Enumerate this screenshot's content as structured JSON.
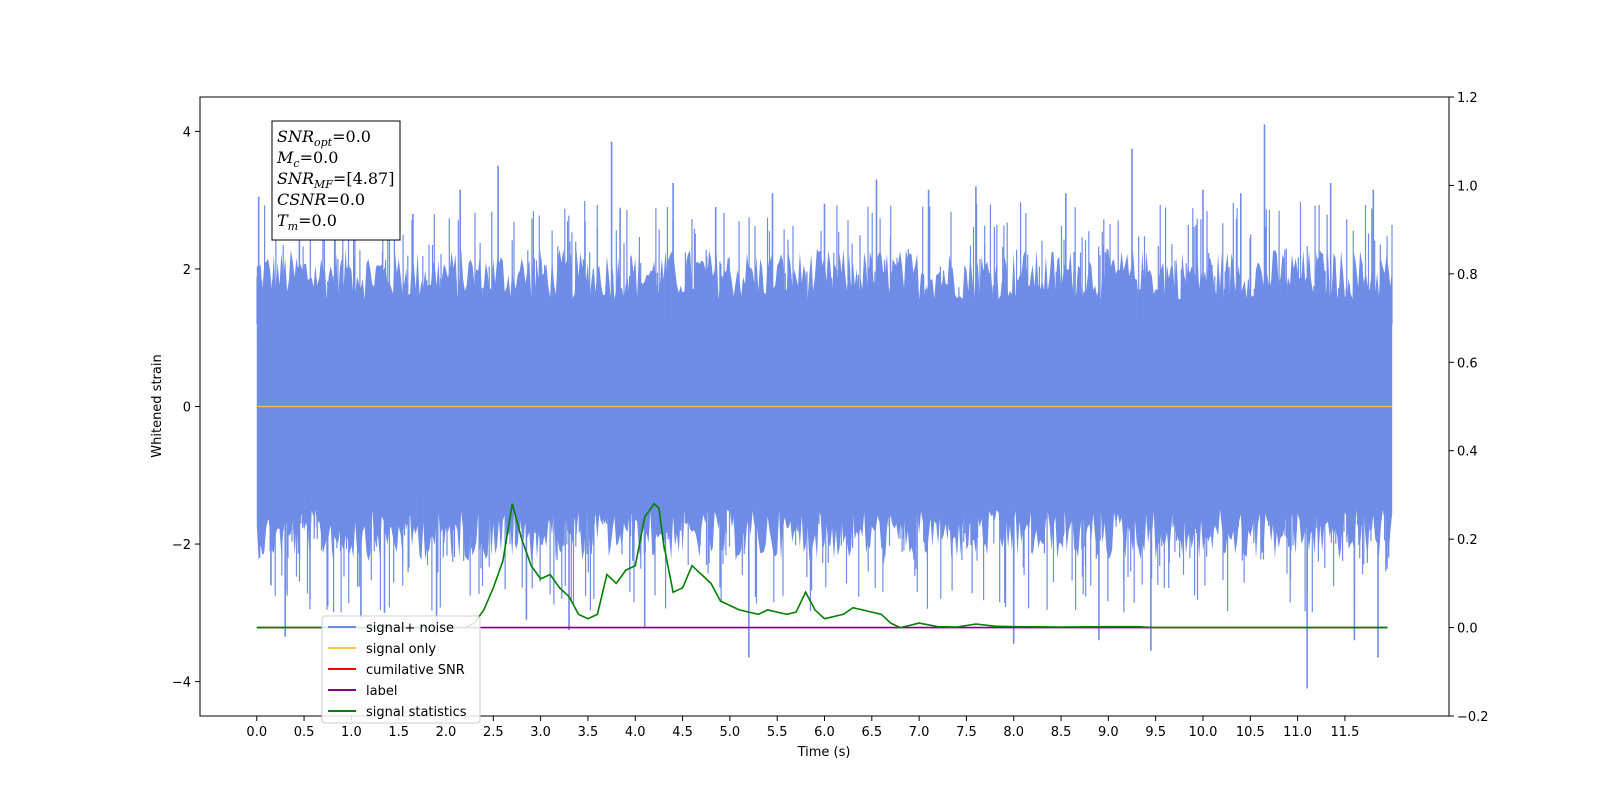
{
  "chart_data": {
    "type": "line",
    "xlabel": "Time (s)",
    "ylabel": "Whitened strain",
    "xlim": [
      -0.6,
      12.6
    ],
    "ylim": [
      -4.5,
      4.5
    ],
    "y2lim": [
      -0.2,
      1.2
    ],
    "x_ticks": [
      "0.0",
      "0.5",
      "1.0",
      "1.5",
      "2.0",
      "2.5",
      "3.0",
      "3.5",
      "4.0",
      "4.5",
      "5.0",
      "5.5",
      "6.0",
      "6.5",
      "7.0",
      "7.5",
      "8.0",
      "8.5",
      "9.0",
      "9.5",
      "10.0",
      "10.5",
      "11.0",
      "11.5"
    ],
    "y_ticks": [
      "4",
      "2",
      "0",
      "−2",
      "−4"
    ],
    "y2_ticks": [
      "1.2",
      "1.0",
      "0.8",
      "0.6",
      "0.4",
      "0.2",
      "0.0",
      "−0.2"
    ],
    "noise": {
      "x_range": [
        0.0,
        12.0
      ],
      "spikes": [
        {
          "x": 0.02,
          "y": 3.05
        },
        {
          "x": 0.03,
          "y": -2.2
        },
        {
          "x": 0.15,
          "y": -2.6
        },
        {
          "x": 0.3,
          "y": -3.35
        },
        {
          "x": 0.45,
          "y": 2.6
        },
        {
          "x": 0.75,
          "y": -2.9
        },
        {
          "x": 1.1,
          "y": -3.1
        },
        {
          "x": 1.35,
          "y": -3.0
        },
        {
          "x": 1.65,
          "y": 2.8
        },
        {
          "x": 1.9,
          "y": -3.3
        },
        {
          "x": 2.15,
          "y": 3.15
        },
        {
          "x": 2.55,
          "y": 3.5
        },
        {
          "x": 2.85,
          "y": -3.1
        },
        {
          "x": 3.3,
          "y": -3.25
        },
        {
          "x": 3.75,
          "y": 3.85
        },
        {
          "x": 4.1,
          "y": -3.2
        },
        {
          "x": 4.4,
          "y": 3.25
        },
        {
          "x": 4.85,
          "y": 2.9
        },
        {
          "x": 5.2,
          "y": -3.65
        },
        {
          "x": 5.45,
          "y": 3.1
        },
        {
          "x": 6.0,
          "y": 2.95
        },
        {
          "x": 6.55,
          "y": 3.3
        },
        {
          "x": 7.1,
          "y": 3.15
        },
        {
          "x": 7.6,
          "y": 3.2
        },
        {
          "x": 8.0,
          "y": -3.45
        },
        {
          "x": 8.55,
          "y": 3.1
        },
        {
          "x": 8.9,
          "y": -3.4
        },
        {
          "x": 9.25,
          "y": 3.75
        },
        {
          "x": 9.45,
          "y": -3.55
        },
        {
          "x": 10.0,
          "y": 3.15
        },
        {
          "x": 10.4,
          "y": 3.1
        },
        {
          "x": 10.65,
          "y": 4.1
        },
        {
          "x": 11.1,
          "y": -4.1
        },
        {
          "x": 11.35,
          "y": 3.25
        },
        {
          "x": 11.6,
          "y": -3.4
        },
        {
          "x": 11.85,
          "y": -3.65
        },
        {
          "x": 11.8,
          "y": 3.15
        }
      ]
    },
    "series": [
      {
        "name": "signal+ noise",
        "color": "#6f8ce6",
        "axis": "left"
      },
      {
        "name": "signal only",
        "color": "#ffc04d",
        "axis": "left",
        "x": [
          0.0,
          12.0
        ],
        "y": [
          0.0,
          0.0
        ]
      },
      {
        "name": "cumilative SNR",
        "color": "#ff0000",
        "axis": "right",
        "x": [],
        "y": []
      },
      {
        "name": "label",
        "color": "#800080",
        "axis": "right",
        "x": [
          0.0,
          11.95
        ],
        "y": [
          0.0,
          0.0
        ]
      },
      {
        "name": "signal statistics",
        "color": "#008000",
        "axis": "right",
        "x": [
          0.0,
          2.2,
          2.3,
          2.4,
          2.5,
          2.6,
          2.7,
          2.8,
          2.9,
          3.0,
          3.1,
          3.2,
          3.3,
          3.4,
          3.5,
          3.6,
          3.7,
          3.8,
          3.9,
          4.0,
          4.1,
          4.2,
          4.25,
          4.3,
          4.4,
          4.5,
          4.6,
          4.7,
          4.8,
          4.9,
          5.0,
          5.1,
          5.2,
          5.3,
          5.4,
          5.5,
          5.6,
          5.7,
          5.8,
          5.9,
          6.0,
          6.1,
          6.2,
          6.3,
          6.4,
          6.5,
          6.6,
          6.7,
          6.8,
          6.9,
          7.0,
          7.2,
          7.4,
          7.6,
          7.8,
          8.0,
          8.5,
          9.0,
          9.3,
          9.5,
          11.95
        ],
        "y": [
          0.0,
          0.0,
          0.01,
          0.04,
          0.09,
          0.15,
          0.28,
          0.2,
          0.14,
          0.11,
          0.12,
          0.09,
          0.07,
          0.03,
          0.02,
          0.03,
          0.12,
          0.1,
          0.13,
          0.14,
          0.25,
          0.28,
          0.27,
          0.19,
          0.08,
          0.09,
          0.14,
          0.12,
          0.1,
          0.06,
          0.05,
          0.04,
          0.035,
          0.03,
          0.04,
          0.035,
          0.03,
          0.035,
          0.08,
          0.04,
          0.02,
          0.025,
          0.03,
          0.045,
          0.04,
          0.035,
          0.03,
          0.01,
          0.0,
          0.005,
          0.01,
          0.002,
          0.001,
          0.008,
          0.003,
          0.002,
          0.001,
          0.002,
          0.002,
          0.0,
          0.0
        ]
      }
    ],
    "annotation": {
      "lines": [
        {
          "main": "SNR",
          "sub": "opt",
          "value": "=0.0"
        },
        {
          "main": "M",
          "sub": "c",
          "value": "=0.0"
        },
        {
          "main": "SNR",
          "sub": "MF",
          "value": "=[4.87]"
        },
        {
          "main": "CSNR",
          "sub": "",
          "value": "=0.0"
        },
        {
          "main": "T",
          "sub": "m",
          "value": "=0.0"
        }
      ]
    },
    "legend_placement": "lower-left",
    "grid": false
  }
}
